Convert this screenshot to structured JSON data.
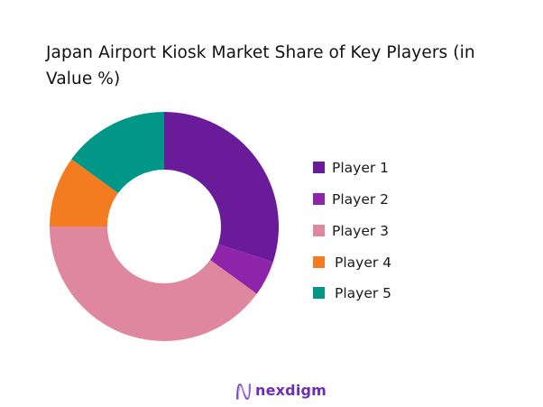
{
  "chart_data": {
    "type": "pie",
    "subtype": "donut",
    "title": "Japan Airport Kiosk Market Share of Key Players (in Value %)",
    "categories": [
      "Player 1",
      "Player 2",
      "Player 3",
      "Player 4",
      "Player 5"
    ],
    "values": [
      30,
      5,
      40,
      10,
      15
    ],
    "colors": [
      "#6A1B9A",
      "#8E24AA",
      "#DE879E",
      "#F47C20",
      "#009688"
    ],
    "start_angle_deg": 0,
    "direction": "clockwise",
    "legend_position": "right",
    "unit": "%"
  },
  "title": {
    "line1": "Japan Airport Kiosk Market Share of Key Players (in",
    "line2": "Value %)"
  },
  "legend": [
    {
      "label": "Player 1",
      "color": "#6A1B9A"
    },
    {
      "label": "Player 2",
      "color": "#8E24AA"
    },
    {
      "label": "Player 3",
      "color": "#DE879E"
    },
    {
      "label": "Player 4",
      "color": "#F47C20"
    },
    {
      "label": "Player 5",
      "color": "#009688"
    }
  ],
  "footer": {
    "logo_text": "nexdigm",
    "logo_icon": "nexdigm-wave-n-icon",
    "logo_color": "#6A2FB5"
  }
}
